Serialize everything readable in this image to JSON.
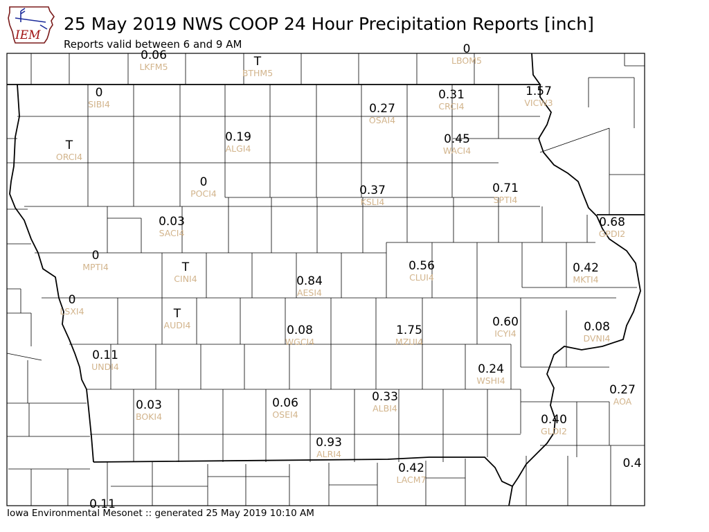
{
  "header": {
    "logo_text": "IEM",
    "title": "25 May 2019 NWS COOP 24 Hour Precipitation Reports [inch]",
    "subtitle": "Reports valid between 6 and 9 AM"
  },
  "footer": {
    "credit": "Iowa Environmental Mesonet :: generated 25 May 2019 10:10 AM"
  },
  "colors": {
    "value_text": "#000000",
    "station_id_text": "#d2b48c",
    "county_lines": "#000000",
    "background": "#ffffff"
  },
  "stations": [
    {
      "id": "LKFM5",
      "value": "0.06"
    },
    {
      "id": "BTHM5",
      "value": "T"
    },
    {
      "id": "LBOM5",
      "value": "0"
    },
    {
      "id": "SIBI4",
      "value": "0"
    },
    {
      "id": "CRCI4",
      "value": "0.31"
    },
    {
      "id": "VICW3",
      "value": "1.57"
    },
    {
      "id": "OSAI4",
      "value": "0.27"
    },
    {
      "id": "ORCI4",
      "value": "T"
    },
    {
      "id": "ALGI4",
      "value": "0.19"
    },
    {
      "id": "WACI4",
      "value": "0.45"
    },
    {
      "id": "POCI4",
      "value": "0"
    },
    {
      "id": "KSLI4",
      "value": "0.37"
    },
    {
      "id": "SPTI4",
      "value": "0.71"
    },
    {
      "id": "SACI4",
      "value": "0.03"
    },
    {
      "id": "GPDI2",
      "value": "0.68"
    },
    {
      "id": "MPTI4",
      "value": "0"
    },
    {
      "id": "CINI4",
      "value": "T"
    },
    {
      "id": "CLUI4",
      "value": "0.56"
    },
    {
      "id": "MKTI4",
      "value": "0.42"
    },
    {
      "id": "AESI4",
      "value": "0.84"
    },
    {
      "id": "LSXI4",
      "value": "0"
    },
    {
      "id": "AUDI4",
      "value": "T"
    },
    {
      "id": "WGCI4",
      "value": "0.08"
    },
    {
      "id": "MZUI4",
      "value": "1.75"
    },
    {
      "id": "ICYI4",
      "value": "0.60"
    },
    {
      "id": "DVNI4",
      "value": "0.08"
    },
    {
      "id": "UNDI4",
      "value": "0.11"
    },
    {
      "id": "WSHI4",
      "value": "0.24"
    },
    {
      "id": "AOA",
      "value": "0.27"
    },
    {
      "id": "BOKI4",
      "value": "0.03"
    },
    {
      "id": "OSEI4",
      "value": "0.06"
    },
    {
      "id": "ALBI4",
      "value": "0.33"
    },
    {
      "id": "GLDI2",
      "value": "0.40"
    },
    {
      "id": "ALRI4",
      "value": "0.93"
    },
    {
      "id": "LACM7",
      "value": "0.42"
    },
    {
      "id": "",
      "value": "0.4"
    },
    {
      "id": "",
      "value": "0.11"
    }
  ]
}
